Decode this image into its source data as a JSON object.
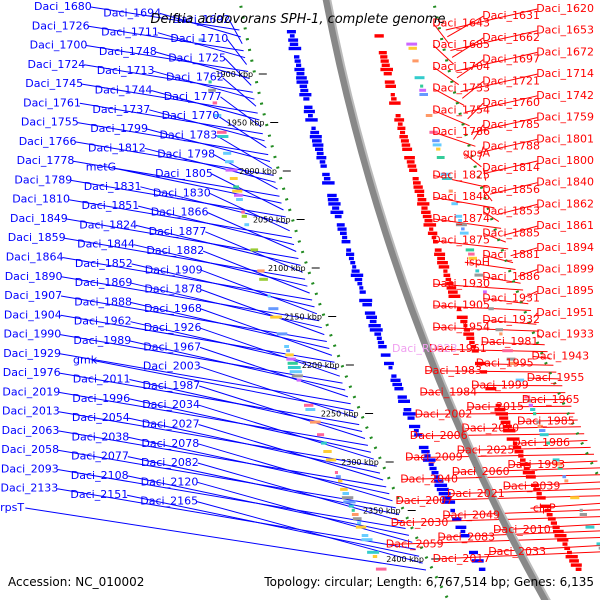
{
  "title": "Delftia acidovorans SPH-1, complete genome",
  "footer": {
    "accession": "Accession: NC_010002",
    "summary": "Topology: circular; Length: 6,767,514 bp; Genes: 6,135"
  },
  "colors": {
    "left_genes": "#0000ff",
    "right_genes": "#ff0000",
    "backbone": "#888888",
    "dots": "#228b22",
    "highlight": "#f0a0f0"
  },
  "ticks": [
    "1900 kbp",
    "1950 kbp",
    "2000 kbp",
    "2050 kbp",
    "2100 kbp",
    "2150 kbp",
    "2200 kbp",
    "2250 kbp",
    "2300 kbp",
    "2350 kbp",
    "2400 kbp"
  ],
  "left_labels": [
    "Daci_1680",
    "Daci_1694",
    "Daci_1692",
    "Daci_1726",
    "Daci_1711",
    "Daci_1710",
    "Daci_1700",
    "Daci_1748",
    "Daci_1725",
    "Daci_1724",
    "Daci_1713",
    "Daci_1762",
    "Daci_1745",
    "Daci_1744",
    "Daci_1777",
    "Daci_1761",
    "Daci_1737",
    "Daci_1770",
    "Daci_1755",
    "Daci_1799",
    "Daci_1783",
    "Daci_1766",
    "Daci_1812",
    "Daci_1798",
    "Daci_1778",
    "metG",
    "Daci_1805",
    "Daci_1789",
    "Daci_1831",
    "Daci_1830",
    "Daci_1810",
    "Daci_1851",
    "Daci_1866",
    "Daci_1849",
    "Daci_1824",
    "Daci_1877",
    "Daci_1859",
    "Daci_1844",
    "Daci_1882",
    "Daci_1864",
    "Daci_1852",
    "Daci_1909",
    "Daci_1890",
    "Daci_1869",
    "Daci_1878",
    "Daci_1907",
    "Daci_1888",
    "Daci_1968",
    "Daci_1904",
    "Daci_1962",
    "Daci_1926",
    "Daci_1990",
    "Daci_1989",
    "Daci_1967",
    "Daci_1929",
    "gmk",
    "Daci_2003",
    "Daci_1976",
    "Daci_2011",
    "Daci_1987",
    "Daci_2019",
    "Daci_1996",
    "Daci_2034",
    "Daci_2013",
    "Daci_2054",
    "Daci_2027",
    "Daci_2063",
    "Daci_2038",
    "Daci_2078",
    "Daci_2058",
    "Daci_2077",
    "Daci_2082",
    "Daci_2093",
    "Daci_2108",
    "Daci_2120",
    "Daci_2133",
    "Daci_2151",
    "Daci_2165",
    "rpsT"
  ],
  "right_labels": [
    "Daci_1620",
    "Daci_1631",
    "Daci_1643",
    "Daci_1653",
    "Daci_1662",
    "Daci_1685",
    "Daci_1672",
    "Daci_1697",
    "Daci_1704",
    "Daci_1714",
    "Daci_1721",
    "Daci_1733",
    "Daci_1742",
    "Daci_1760",
    "Daci_1754",
    "Daci_1759",
    "Daci_1785",
    "Daci_1786",
    "Daci_1801",
    "Daci_1788",
    "gpsA",
    "Daci_1800",
    "Daci_1814",
    "Daci_1825",
    "Daci_1840",
    "Daci_1856",
    "Daci_1846",
    "Daci_1862",
    "Daci_1853",
    "Daci_1874",
    "Daci_1861",
    "Daci_1885",
    "Daci_1875",
    "Daci_1894",
    "Daci_1881",
    "ispH",
    "Daci_1899",
    "Daci_1886",
    "Daci_1930",
    "Daci_1895",
    "Daci_1931",
    "Daci_1905",
    "Daci_1951",
    "Daci_1932",
    "Daci_1954",
    "Daci_1933",
    "Daci_1981",
    "Daci_1961",
    "Daci_1943",
    "Daci_1995",
    "Daci_1983",
    "Daci_1955",
    "Daci_1999",
    "Daci_1984",
    "Daci_1965",
    "Daci_2015",
    "Daci_2002",
    "Daci_1985",
    "Daci_2020",
    "Daci_2006",
    "Daci_1986",
    "Daci_2025",
    "Daci_2009",
    "Daci_1993",
    "Daci_2060",
    "Daci_2040",
    "Daci_2039",
    "Daci_2021",
    "Daci_2007",
    "clpP",
    "Daci_2049",
    "Daci_2030",
    "Daci_2010",
    "Daci_2083",
    "Daci_2059",
    "Daci_2033",
    "Daci_2017"
  ],
  "highlight_label": "Daci_R0023"
}
